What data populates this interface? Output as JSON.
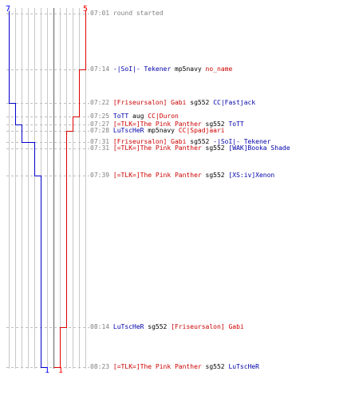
{
  "header": {
    "blue_start": "7",
    "red_start": "5",
    "blue_end": "1",
    "red_end": "1"
  },
  "colors": {
    "blue": "#0000aa",
    "red": "#cc0000",
    "grid": "#c0c0c0",
    "time": "#808080"
  },
  "events": [
    {
      "time": "07:01",
      "message": "round started"
    },
    {
      "time": "07:14",
      "killer": "-|SoI|- Tekener",
      "killer_team": "blue",
      "weapon": "mp5navy",
      "victim": "no_name",
      "victim_team": "red"
    },
    {
      "time": "07:22",
      "killer": "[Friseursalon] Gabi",
      "killer_team": "red",
      "weapon": "sg552",
      "victim": "CC|Fastjack",
      "victim_team": "blue"
    },
    {
      "time": "07:25",
      "killer": "ToTT",
      "killer_team": "blue",
      "weapon": "aug",
      "victim": "CC|Duron",
      "victim_team": "red"
    },
    {
      "time": "07:27",
      "killer": "[=TLK=]The Pink Panther",
      "killer_team": "red",
      "weapon": "sg552",
      "victim": "ToTT",
      "victim_team": "blue"
    },
    {
      "time": "07:28",
      "killer": "LuTscHeR",
      "killer_team": "blue",
      "weapon": "mp5navy",
      "victim": "CC|Spadjaari",
      "victim_team": "red"
    },
    {
      "time": "07:31",
      "killer": "[Friseursalon] Gabi",
      "killer_team": "red",
      "weapon": "sg552",
      "victim": "-|SoI|- Tekener",
      "victim_team": "blue"
    },
    {
      "time": "07:31",
      "killer": "[=TLK=]The Pink Panther",
      "killer_team": "red",
      "weapon": "sg552",
      "victim": "[WAK]Booka Shade",
      "victim_team": "blue"
    },
    {
      "time": "07:39",
      "killer": "[=TLK=]The Pink Panther",
      "killer_team": "red",
      "weapon": "sg552",
      "victim": "[XS:iv]Xenon",
      "victim_team": "blue"
    },
    {
      "time": "08:14",
      "killer": "LuTscHeR",
      "killer_team": "blue",
      "weapon": "sg552",
      "victim": "[Friseursalon] Gabi",
      "victim_team": "red"
    },
    {
      "time": "08:23",
      "killer": "[=TLK=]The Pink Panther",
      "killer_team": "red",
      "weapon": "sg552",
      "victim": "LuTscHeR",
      "victim_team": "blue"
    }
  ]
}
